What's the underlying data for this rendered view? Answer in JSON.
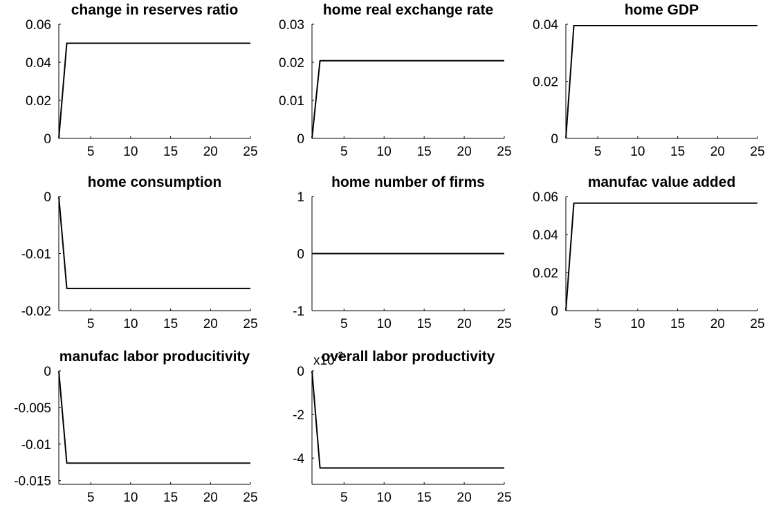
{
  "figure": {
    "line_color": "#000000",
    "background": "#ffffff"
  },
  "chart_data": [
    {
      "type": "line",
      "title": "change in reserves ratio",
      "x": [
        1,
        2,
        3,
        4,
        5,
        6,
        7,
        8,
        9,
        10,
        11,
        12,
        13,
        14,
        15,
        16,
        17,
        18,
        19,
        20,
        21,
        22,
        23,
        24,
        25
      ],
      "series": [
        {
          "values": [
            0,
            0.05,
            0.05,
            0.05,
            0.05,
            0.05,
            0.05,
            0.05,
            0.05,
            0.05,
            0.05,
            0.05,
            0.05,
            0.05,
            0.05,
            0.05,
            0.05,
            0.05,
            0.05,
            0.05,
            0.05,
            0.05,
            0.05,
            0.05,
            0.05
          ]
        }
      ],
      "xlim": [
        1,
        25
      ],
      "ylim": [
        0,
        0.06
      ],
      "xticks": [
        5,
        10,
        15,
        20,
        25
      ],
      "xtick_labels": [
        "5",
        "10",
        "15",
        "20",
        "25"
      ],
      "yticks": [
        0,
        0.02,
        0.04,
        0.06
      ],
      "ytick_labels": [
        "0",
        "0.02",
        "0.04",
        "0.06"
      ],
      "exponent_label": "",
      "grid": false
    },
    {
      "type": "line",
      "title": "home real exchange rate",
      "x": [
        1,
        2,
        3,
        4,
        5,
        6,
        7,
        8,
        9,
        10,
        11,
        12,
        13,
        14,
        15,
        16,
        17,
        18,
        19,
        20,
        21,
        22,
        23,
        24,
        25
      ],
      "series": [
        {
          "values": [
            0,
            0.0204,
            0.0204,
            0.0204,
            0.0204,
            0.0204,
            0.0204,
            0.0204,
            0.0204,
            0.0204,
            0.0204,
            0.0204,
            0.0204,
            0.0204,
            0.0204,
            0.0204,
            0.0204,
            0.0204,
            0.0204,
            0.0204,
            0.0204,
            0.0204,
            0.0204,
            0.0204,
            0.0204
          ]
        }
      ],
      "xlim": [
        1,
        25
      ],
      "ylim": [
        0,
        0.03
      ],
      "xticks": [
        5,
        10,
        15,
        20,
        25
      ],
      "xtick_labels": [
        "5",
        "10",
        "15",
        "20",
        "25"
      ],
      "yticks": [
        0,
        0.01,
        0.02,
        0.03
      ],
      "ytick_labels": [
        "0",
        "0.01",
        "0.02",
        "0.03"
      ],
      "exponent_label": "",
      "grid": false
    },
    {
      "type": "line",
      "title": "home GDP",
      "x": [
        1,
        2,
        3,
        4,
        5,
        6,
        7,
        8,
        9,
        10,
        11,
        12,
        13,
        14,
        15,
        16,
        17,
        18,
        19,
        20,
        21,
        22,
        23,
        24,
        25
      ],
      "series": [
        {
          "values": [
            0,
            0.0395,
            0.0395,
            0.0395,
            0.0395,
            0.0395,
            0.0395,
            0.0395,
            0.0395,
            0.0395,
            0.0395,
            0.0395,
            0.0395,
            0.0395,
            0.0395,
            0.0395,
            0.0395,
            0.0395,
            0.0395,
            0.0395,
            0.0395,
            0.0395,
            0.0395,
            0.0395,
            0.0395
          ]
        }
      ],
      "xlim": [
        1,
        25
      ],
      "ylim": [
        0,
        0.04
      ],
      "xticks": [
        5,
        10,
        15,
        20,
        25
      ],
      "xtick_labels": [
        "5",
        "10",
        "15",
        "20",
        "25"
      ],
      "yticks": [
        0,
        0.02,
        0.04
      ],
      "ytick_labels": [
        "0",
        "0.02",
        "0.04"
      ],
      "exponent_label": "",
      "grid": false
    },
    {
      "type": "line",
      "title": "home consumption",
      "x": [
        1,
        2,
        3,
        4,
        5,
        6,
        7,
        8,
        9,
        10,
        11,
        12,
        13,
        14,
        15,
        16,
        17,
        18,
        19,
        20,
        21,
        22,
        23,
        24,
        25
      ],
      "series": [
        {
          "values": [
            0,
            -0.0161,
            -0.0161,
            -0.0161,
            -0.0161,
            -0.0161,
            -0.0161,
            -0.0161,
            -0.0161,
            -0.0161,
            -0.0161,
            -0.0161,
            -0.0161,
            -0.0161,
            -0.0161,
            -0.0161,
            -0.0161,
            -0.0161,
            -0.0161,
            -0.0161,
            -0.0161,
            -0.0161,
            -0.0161,
            -0.0161,
            -0.0161
          ]
        }
      ],
      "xlim": [
        1,
        25
      ],
      "ylim": [
        -0.02,
        0
      ],
      "xticks": [
        5,
        10,
        15,
        20,
        25
      ],
      "xtick_labels": [
        "5",
        "10",
        "15",
        "20",
        "25"
      ],
      "yticks": [
        -0.02,
        -0.01,
        0
      ],
      "ytick_labels": [
        "-0.02",
        "-0.01",
        "0"
      ],
      "exponent_label": "",
      "grid": false
    },
    {
      "type": "line",
      "title": "home number of firms",
      "x": [
        1,
        2,
        3,
        4,
        5,
        6,
        7,
        8,
        9,
        10,
        11,
        12,
        13,
        14,
        15,
        16,
        17,
        18,
        19,
        20,
        21,
        22,
        23,
        24,
        25
      ],
      "series": [
        {
          "values": [
            0,
            0,
            0,
            0,
            0,
            0,
            0,
            0,
            0,
            0,
            0,
            0,
            0,
            0,
            0,
            0,
            0,
            0,
            0,
            0,
            0,
            0,
            0,
            0,
            0
          ]
        }
      ],
      "xlim": [
        1,
        25
      ],
      "ylim": [
        -1,
        1
      ],
      "xticks": [
        5,
        10,
        15,
        20,
        25
      ],
      "xtick_labels": [
        "5",
        "10",
        "15",
        "20",
        "25"
      ],
      "yticks": [
        -1,
        0,
        1
      ],
      "ytick_labels": [
        "-1",
        "0",
        "1"
      ],
      "exponent_label": "",
      "grid": false
    },
    {
      "type": "line",
      "title": "manufac value added",
      "x": [
        1,
        2,
        3,
        4,
        5,
        6,
        7,
        8,
        9,
        10,
        11,
        12,
        13,
        14,
        15,
        16,
        17,
        18,
        19,
        20,
        21,
        22,
        23,
        24,
        25
      ],
      "series": [
        {
          "values": [
            0,
            0.0565,
            0.0565,
            0.0565,
            0.0565,
            0.0565,
            0.0565,
            0.0565,
            0.0565,
            0.0565,
            0.0565,
            0.0565,
            0.0565,
            0.0565,
            0.0565,
            0.0565,
            0.0565,
            0.0565,
            0.0565,
            0.0565,
            0.0565,
            0.0565,
            0.0565,
            0.0565,
            0.0565
          ]
        }
      ],
      "xlim": [
        1,
        25
      ],
      "ylim": [
        0,
        0.06
      ],
      "xticks": [
        5,
        10,
        15,
        20,
        25
      ],
      "xtick_labels": [
        "5",
        "10",
        "15",
        "20",
        "25"
      ],
      "yticks": [
        0,
        0.02,
        0.04,
        0.06
      ],
      "ytick_labels": [
        "0",
        "0.02",
        "0.04",
        "0.06"
      ],
      "exponent_label": "",
      "grid": false
    },
    {
      "type": "line",
      "title": "manufac labor producitivity",
      "x": [
        1,
        2,
        3,
        4,
        5,
        6,
        7,
        8,
        9,
        10,
        11,
        12,
        13,
        14,
        15,
        16,
        17,
        18,
        19,
        20,
        21,
        22,
        23,
        24,
        25
      ],
      "series": [
        {
          "values": [
            0,
            -0.0126,
            -0.0126,
            -0.0126,
            -0.0126,
            -0.0126,
            -0.0126,
            -0.0126,
            -0.0126,
            -0.0126,
            -0.0126,
            -0.0126,
            -0.0126,
            -0.0126,
            -0.0126,
            -0.0126,
            -0.0126,
            -0.0126,
            -0.0126,
            -0.0126,
            -0.0126,
            -0.0126,
            -0.0126,
            -0.0126,
            -0.0126
          ]
        }
      ],
      "xlim": [
        1,
        25
      ],
      "ylim": [
        -0.0155,
        0
      ],
      "xticks": [
        5,
        10,
        15,
        20,
        25
      ],
      "xtick_labels": [
        "5",
        "10",
        "15",
        "20",
        "25"
      ],
      "yticks": [
        -0.015,
        -0.01,
        -0.005,
        0
      ],
      "ytick_labels": [
        "-0.015",
        "-0.01",
        "-0.005",
        "0"
      ],
      "exponent_label": "",
      "grid": false
    },
    {
      "type": "line",
      "title": "overall labor productivity",
      "x": [
        1,
        2,
        3,
        4,
        5,
        6,
        7,
        8,
        9,
        10,
        11,
        12,
        13,
        14,
        15,
        16,
        17,
        18,
        19,
        20,
        21,
        22,
        23,
        24,
        25
      ],
      "series": [
        {
          "values": [
            0,
            -4.45,
            -4.45,
            -4.45,
            -4.45,
            -4.45,
            -4.45,
            -4.45,
            -4.45,
            -4.45,
            -4.45,
            -4.45,
            -4.45,
            -4.45,
            -4.45,
            -4.45,
            -4.45,
            -4.45,
            -4.45,
            -4.45,
            -4.45,
            -4.45,
            -4.45,
            -4.45,
            -4.45
          ]
        }
      ],
      "xlim": [
        1,
        25
      ],
      "ylim": [
        -5.2,
        0
      ],
      "xticks": [
        5,
        10,
        15,
        20,
        25
      ],
      "xtick_labels": [
        "5",
        "10",
        "15",
        "20",
        "25"
      ],
      "yticks": [
        -4,
        -2,
        0
      ],
      "ytick_labels": [
        "-4",
        "-2",
        "0"
      ],
      "exponent_label": "x10-3",
      "grid": false
    }
  ]
}
